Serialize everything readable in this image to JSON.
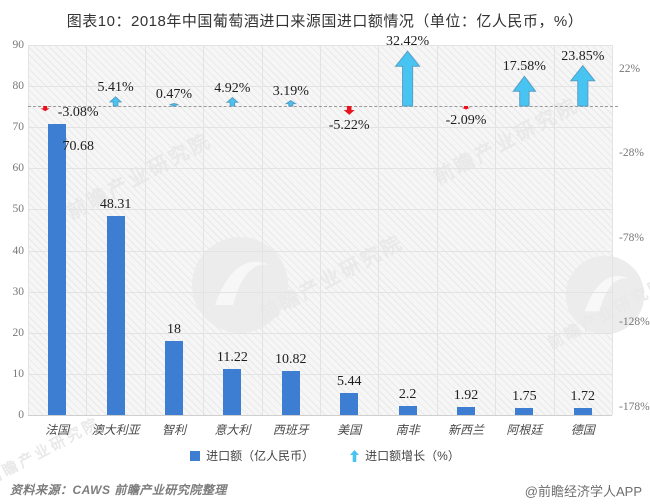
{
  "title": "图表10：2018年中国葡萄酒进口来源国进口额情况（单位：亿人民币，%）",
  "chart_data": {
    "type": "bar",
    "title": "图表10：2018年中国葡萄酒进口来源国进口额情况（单位：亿人民币，%）",
    "categories": [
      "法国",
      "澳大利亚",
      "智利",
      "意大利",
      "西班牙",
      "美国",
      "南非",
      "新西兰",
      "阿根廷",
      "德国"
    ],
    "series": [
      {
        "name": "进口额（亿人民币）",
        "type": "bar",
        "values": [
          70.68,
          48.31,
          18,
          11.22,
          10.82,
          5.44,
          2.2,
          1.92,
          1.75,
          1.72
        ],
        "value_labels": [
          "70.68",
          "48.31",
          "18",
          "11.22",
          "10.82",
          "5.44",
          "2.2",
          "1.92",
          "1.75",
          "1.72"
        ]
      },
      {
        "name": "进口额增长（%）",
        "type": "arrow",
        "values": [
          -3.08,
          5.41,
          0.47,
          4.92,
          3.19,
          -5.22,
          32.42,
          -2.09,
          17.58,
          23.85
        ],
        "value_labels": [
          "-3.08%",
          "5.41%",
          "0.47%",
          "4.92%",
          "3.19%",
          "-5.22%",
          "32.42%",
          "-2.09%",
          "17.58%",
          "23.85%"
        ]
      }
    ],
    "left_axis": {
      "ticks": [
        0,
        10,
        20,
        30,
        40,
        50,
        60,
        70,
        80,
        90
      ],
      "range": [
        0,
        90
      ]
    },
    "right_axis": {
      "tick_labels": [
        "22%",
        "-28%",
        "-78%",
        "-128%",
        "-178%"
      ],
      "tick_values": [
        22,
        -28,
        -78,
        -128,
        -178
      ]
    },
    "zero_line_dashed": true,
    "grid": true,
    "legend_position": "bottom-center"
  },
  "legend": {
    "import_label": "进口额（亿人民币）",
    "growth_label": "进口额增长（%）"
  },
  "footer": {
    "source": "资料来源：CAWS  前瞻产业研究院整理",
    "credit": "@前瞻经济学人APP"
  },
  "watermark": {
    "text": "前瞻产业研究院"
  },
  "colors": {
    "bar": "#3D7DD2",
    "growth_up": "#47C4F1",
    "growth_up_stroke": "#5A9EC4",
    "growth_down": "#E8121C",
    "zero_line": "#9A9A9A"
  }
}
